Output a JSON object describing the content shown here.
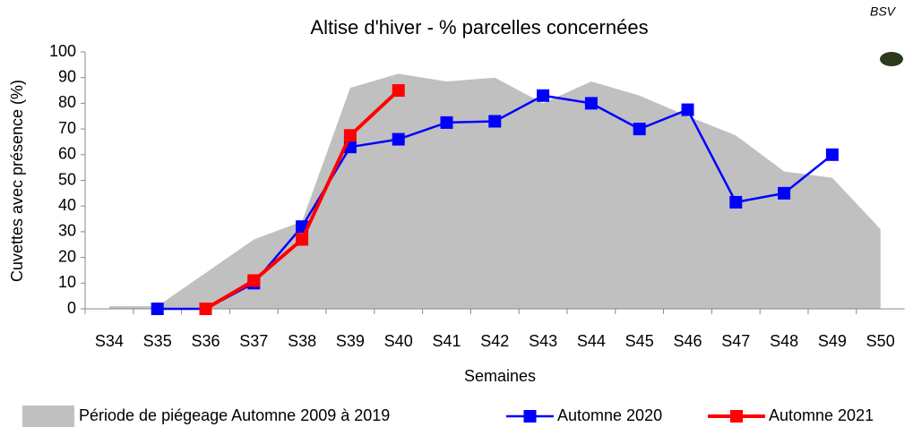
{
  "chart_data": {
    "type": "line",
    "title": "Altise d'hiver - % parcelles concernées",
    "logo_text": "BSV",
    "x_label": "Semaines",
    "y_label": "Cuvettes avec présence (%)",
    "categories": [
      "S34",
      "S35",
      "S36",
      "S37",
      "S38",
      "S39",
      "S40",
      "S41",
      "S42",
      "S43",
      "S44",
      "S45",
      "S46",
      "S47",
      "S48",
      "S49",
      "S50"
    ],
    "series": [
      {
        "name": "Période de piégeage Automne 2009 à 2019",
        "color": "#c0c0c0",
        "kind": "area",
        "values": [
          1,
          1,
          14,
          27,
          34,
          86,
          91.5,
          88.5,
          90,
          80,
          88.5,
          83,
          75,
          67.5,
          53.5,
          51,
          31
        ]
      },
      {
        "name": "Automne 2020",
        "color": "#0000ff",
        "kind": "line",
        "values": [
          null,
          0,
          0,
          10,
          32,
          63,
          66,
          72.5,
          73,
          83,
          80,
          70,
          77.5,
          41.5,
          45,
          60,
          null
        ]
      },
      {
        "name": "Automne 2021",
        "color": "#ff0000",
        "kind": "line",
        "values": [
          null,
          null,
          0,
          11,
          27,
          67.5,
          85,
          null,
          null,
          null,
          null,
          null,
          null,
          null,
          null,
          null,
          null
        ]
      }
    ],
    "ylim": [
      0,
      100
    ],
    "yticks": [
      0,
      10,
      20,
      30,
      40,
      50,
      60,
      70,
      80,
      90,
      100
    ],
    "legend": "bottom"
  }
}
